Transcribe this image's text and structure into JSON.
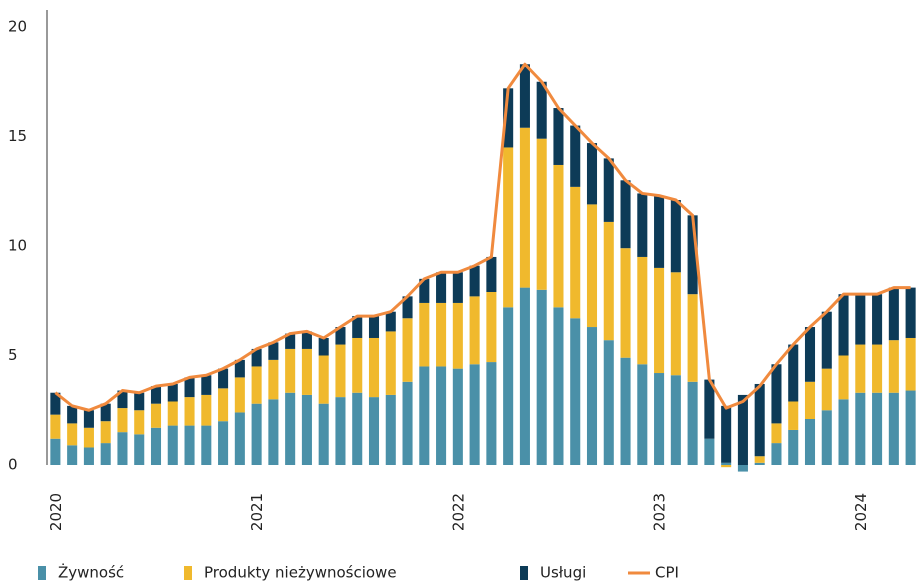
{
  "chart_data": {
    "type": "bar",
    "stacked": true,
    "categories": [
      "2020",
      null,
      null,
      null,
      null,
      null,
      null,
      null,
      null,
      null,
      null,
      null,
      "2021",
      null,
      null,
      null,
      null,
      null,
      null,
      null,
      null,
      null,
      null,
      null,
      "2022",
      null,
      null,
      null,
      null,
      null,
      null,
      null,
      null,
      null,
      null,
      null,
      "2023",
      null,
      null,
      null,
      null,
      null,
      null,
      null,
      null,
      null,
      null,
      null,
      "2024",
      null,
      null,
      null
    ],
    "series": [
      {
        "name": "Żywność",
        "color": "#4a90a8",
        "values": [
          1.2,
          0.9,
          0.8,
          1.0,
          1.5,
          1.4,
          1.7,
          1.8,
          1.8,
          1.8,
          2.0,
          2.4,
          2.8,
          3.0,
          3.3,
          3.2,
          2.8,
          3.1,
          3.3,
          3.1,
          3.2,
          3.8,
          4.5,
          4.5,
          4.4,
          4.6,
          4.7,
          7.2,
          8.1,
          8.0,
          7.2,
          6.7,
          6.3,
          5.7,
          4.9,
          4.6,
          4.2,
          4.1,
          3.8,
          1.2,
          0.1,
          -0.3,
          0.1,
          1.0,
          1.6,
          2.1,
          2.5,
          3.0,
          3.3,
          3.3,
          3.3,
          3.4
        ]
      },
      {
        "name": "Produkty nieżywnościowe",
        "color": "#f0b92d",
        "values": [
          1.1,
          1.0,
          0.9,
          1.0,
          1.1,
          1.1,
          1.1,
          1.1,
          1.3,
          1.4,
          1.5,
          1.6,
          1.7,
          1.8,
          2.0,
          2.1,
          2.2,
          2.4,
          2.5,
          2.7,
          2.9,
          2.9,
          2.9,
          2.9,
          3.0,
          3.1,
          3.2,
          7.3,
          7.3,
          6.9,
          6.5,
          6.0,
          5.6,
          5.4,
          5.0,
          4.9,
          4.8,
          4.7,
          4.0,
          0.0,
          -0.1,
          0.0,
          0.3,
          0.9,
          1.3,
          1.7,
          1.9,
          2.0,
          2.2,
          2.2,
          2.4,
          2.4
        ]
      },
      {
        "name": "Usługi",
        "color": "#0d3b57",
        "values": [
          1.0,
          0.8,
          0.8,
          0.8,
          0.8,
          0.8,
          0.8,
          0.8,
          0.9,
          0.9,
          0.9,
          0.8,
          0.8,
          0.8,
          0.7,
          0.8,
          0.8,
          0.8,
          1.0,
          1.0,
          0.9,
          1.0,
          1.1,
          1.4,
          1.4,
          1.4,
          1.6,
          2.7,
          2.9,
          2.6,
          2.6,
          2.8,
          2.8,
          2.9,
          3.1,
          2.9,
          3.3,
          3.3,
          3.6,
          2.7,
          2.6,
          3.2,
          3.3,
          2.7,
          2.6,
          2.5,
          2.6,
          2.8,
          2.3,
          2.3,
          2.4,
          2.3
        ]
      },
      {
        "name": "CPI",
        "color": "#f08a3e",
        "type": "line",
        "values": [
          3.3,
          2.7,
          2.5,
          2.8,
          3.4,
          3.3,
          3.6,
          3.7,
          4.0,
          4.1,
          4.4,
          4.8,
          5.3,
          5.6,
          6.0,
          6.1,
          5.8,
          6.3,
          6.8,
          6.8,
          7.0,
          7.7,
          8.5,
          8.8,
          8.8,
          9.1,
          9.5,
          17.2,
          18.3,
          17.5,
          16.3,
          15.5,
          14.7,
          14.0,
          13.0,
          12.4,
          12.3,
          12.1,
          11.4,
          3.9,
          2.6,
          2.9,
          3.6,
          4.6,
          5.5,
          6.3,
          7.0,
          7.8,
          7.8,
          7.8,
          8.1,
          8.1
        ]
      }
    ],
    "ylim": [
      0,
      20
    ],
    "yticks": [
      0,
      5,
      10,
      15,
      20
    ],
    "grid": false
  }
}
